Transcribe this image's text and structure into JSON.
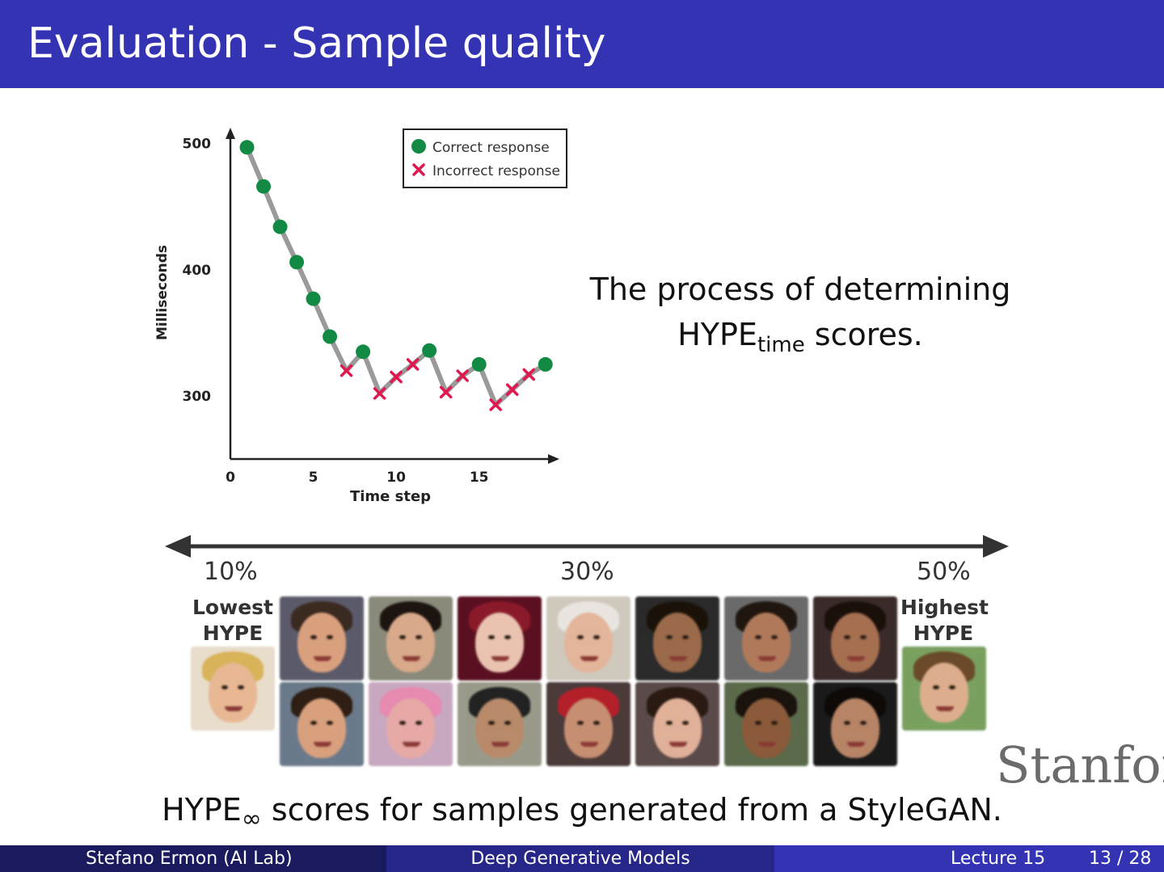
{
  "slide": {
    "title": "Evaluation - Sample quality",
    "caption_right_main": "The process of determining",
    "caption_right_hype": "HYPE",
    "caption_right_sub": "time",
    "caption_right_tail": " scores.",
    "caption_bottom_hype": "HYPE",
    "caption_bottom_sub": "∞",
    "caption_bottom_tail": " scores for samples generated from a StyleGAN.",
    "watermark": "Stanford"
  },
  "chart_data": {
    "type": "line",
    "xlabel": "Time step",
    "ylabel": "Milliseconds",
    "xticks": [
      0,
      5,
      10,
      15
    ],
    "yticks": [
      300,
      400,
      500
    ],
    "xlim": [
      0,
      19.5
    ],
    "ylim": [
      250,
      510
    ],
    "legend": {
      "placement": "top-right",
      "entries": [
        {
          "label": "Correct response",
          "marker": "circle",
          "color": "#138a43"
        },
        {
          "label": "Incorrect response",
          "marker": "x",
          "color": "#e0184f"
        }
      ]
    },
    "line_color": "#9a9a9a",
    "points": [
      {
        "x": 1,
        "y": 497,
        "correct": true
      },
      {
        "x": 2,
        "y": 466,
        "correct": true
      },
      {
        "x": 3,
        "y": 434,
        "correct": true
      },
      {
        "x": 4,
        "y": 406,
        "correct": true
      },
      {
        "x": 5,
        "y": 377,
        "correct": true
      },
      {
        "x": 6,
        "y": 347,
        "correct": true
      },
      {
        "x": 7,
        "y": 320,
        "correct": false
      },
      {
        "x": 8,
        "y": 335,
        "correct": true
      },
      {
        "x": 9,
        "y": 302,
        "correct": false
      },
      {
        "x": 10,
        "y": 315,
        "correct": false
      },
      {
        "x": 11,
        "y": 325,
        "correct": false
      },
      {
        "x": 12,
        "y": 336,
        "correct": true
      },
      {
        "x": 13,
        "y": 303,
        "correct": false
      },
      {
        "x": 14,
        "y": 316,
        "correct": false
      },
      {
        "x": 15,
        "y": 325,
        "correct": true
      },
      {
        "x": 16,
        "y": 293,
        "correct": false
      },
      {
        "x": 17,
        "y": 305,
        "correct": false
      },
      {
        "x": 18,
        "y": 317,
        "correct": false
      },
      {
        "x": 19,
        "y": 325,
        "correct": true
      }
    ]
  },
  "scale": {
    "left_pct": "10%",
    "mid_pct": "30%",
    "right_pct": "50%",
    "lowest_label_1": "Lowest",
    "lowest_label_2": "HYPE",
    "highest_label_1": "Highest",
    "highest_label_2": "HYPE"
  },
  "faces": [
    {
      "bg": "#e8dccb",
      "skin": "#e8b894",
      "hair": "#d9b35a"
    },
    {
      "bg": "#5a5a6a",
      "skin": "#d9a07e",
      "hair": "#3a2a20"
    },
    {
      "bg": "#8a8a7a",
      "skin": "#d8a98a",
      "hair": "#1c1410"
    },
    {
      "bg": "#5a1020",
      "skin": "#e9c3b0",
      "hair": "#8a1a2a"
    },
    {
      "bg": "#cfc8bd",
      "skin": "#e3b59a",
      "hair": "#e8e4e0"
    },
    {
      "bg": "#2a2a2a",
      "skin": "#9a6a4a",
      "hair": "#1a1208"
    },
    {
      "bg": "#6a6a6a",
      "skin": "#b07a5a",
      "hair": "#201610"
    },
    {
      "bg": "#3a2a2a",
      "skin": "#a56f50",
      "hair": "#1a100a"
    },
    {
      "bg": "#6a7a8a",
      "skin": "#d9a07e",
      "hair": "#2e1e14"
    },
    {
      "bg": "#c8a8c0",
      "skin": "#e6a9a6",
      "hair": "#e68ab0"
    },
    {
      "bg": "#9a9a8a",
      "skin": "#b88a6a",
      "hair": "#222222"
    },
    {
      "bg": "#4a3a3a",
      "skin": "#c78f72",
      "hair": "#b4202a"
    },
    {
      "bg": "#5a4a4a",
      "skin": "#e0b098",
      "hair": "#2a1a12"
    },
    {
      "bg": "#5a6a4a",
      "skin": "#8a5a3a",
      "hair": "#1a120c"
    },
    {
      "bg": "#1a1a1a",
      "skin": "#b78466",
      "hair": "#0e0a08"
    },
    {
      "bg": "#7aa060",
      "skin": "#dcae8e",
      "hair": "#6a4a2a"
    }
  ],
  "footer": {
    "author": "Stefano Ermon  (AI Lab)",
    "course": "Deep Generative Models",
    "lecture": "Lecture 15",
    "page": "13 / 28"
  }
}
